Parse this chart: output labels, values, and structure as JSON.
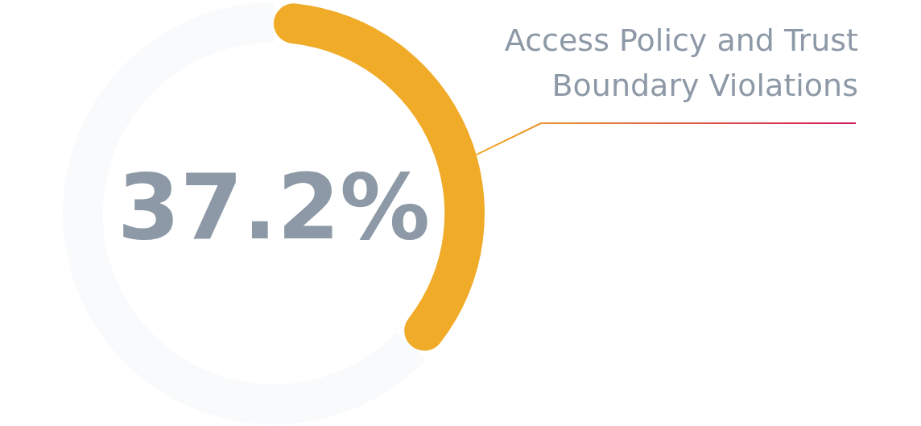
{
  "chart_data": {
    "type": "donut",
    "categories": [
      "Access Policy and Trust Boundary Violations",
      null
    ],
    "values": [
      37.2,
      62.8
    ],
    "colors": [
      "#f0ab29",
      "#f8fafb"
    ],
    "value_labels": [
      "37.2%",
      null
    ]
  }
}
